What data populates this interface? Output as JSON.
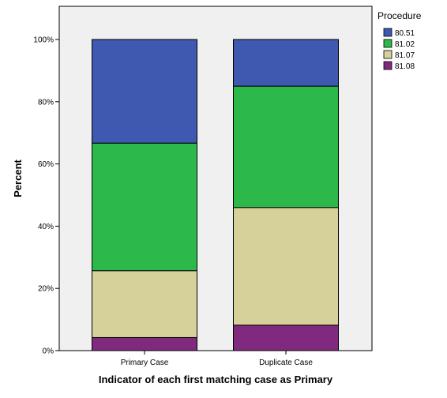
{
  "chart_data": {
    "type": "bar",
    "stacked": true,
    "categories": [
      "Primary Case",
      "Duplicate Case"
    ],
    "series": [
      {
        "name": "81.08",
        "color": "#7f2a7f",
        "values": [
          4.2,
          8.2
        ]
      },
      {
        "name": "81.07",
        "color": "#d6d09b",
        "values": [
          21.5,
          37.8
        ]
      },
      {
        "name": "81.02",
        "color": "#2db84a",
        "values": [
          41.0,
          39.0
        ]
      },
      {
        "name": "80.51",
        "color": "#3f59b0",
        "values": [
          33.3,
          15.0
        ]
      }
    ],
    "xlabel": "Indicator of each first matching case as Primary",
    "ylabel": "Percent",
    "ylim": [
      0,
      100
    ],
    "yticks": [
      "0%",
      "20%",
      "40%",
      "60%",
      "80%",
      "100%"
    ],
    "legend_title": "Procedure",
    "legend_order": [
      "80.51",
      "81.02",
      "81.07",
      "81.08"
    ],
    "legend_position": "top-right",
    "plot_background": "#f0f0f0",
    "grid": false
  }
}
